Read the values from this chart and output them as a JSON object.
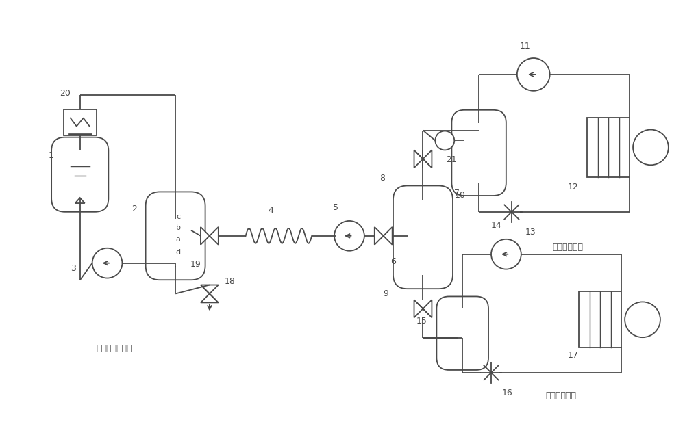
{
  "bg_color": "#ffffff",
  "line_color": "#4a4a4a",
  "fig_width": 10.0,
  "fig_height": 6.17,
  "title1": "列车上释冷过程",
  "title2": "地面冷水机组",
  "title3": "地面制冰机组"
}
